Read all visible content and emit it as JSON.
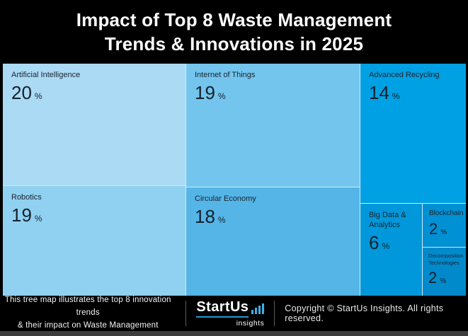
{
  "header": {
    "title_line1": "Impact of Top 8 Waste Management",
    "title_line2": "Trends & Innovations in 2025"
  },
  "chart_data": {
    "type": "treemap",
    "title": "Impact of Top 8 Waste Management Trends & Innovations in 2025",
    "unit": "%",
    "total": 100,
    "layout_hint": "three columns: [AI/Robotics], [IoT/Circular Economy], [Advanced Recycling over Big Data, Blockchain, Decomposition]; darker blue = smaller share",
    "items": [
      {
        "label": "Artificial Intelligence",
        "value": 20,
        "color": "#abdaf4"
      },
      {
        "label": "Robotics",
        "value": 19,
        "color": "#90d1f1"
      },
      {
        "label": "Internet of Things",
        "value": 19,
        "color": "#73c5ee"
      },
      {
        "label": "Circular Economy",
        "value": 18,
        "color": "#55b5e7"
      },
      {
        "label": "Advanced Recycling",
        "value": 14,
        "color": "#00a1e4"
      },
      {
        "label": "Big Data & Analytics",
        "value": 6,
        "color": "#0098da"
      },
      {
        "label": "Blockchain",
        "value": 2,
        "color": "#0091d5"
      },
      {
        "label": "Decomposition Technologies",
        "value": 2,
        "color": "#008acb"
      }
    ]
  },
  "footer": {
    "caption_line1": "This tree map illustrates the top 8 innovation trends",
    "caption_line2": "& their impact on Waste Management",
    "logo": {
      "name": "StartUs",
      "sub": "insights",
      "accent_color": "#2496cd"
    },
    "copyright": "Copyright © StartUs Insights. All rights reserved."
  }
}
